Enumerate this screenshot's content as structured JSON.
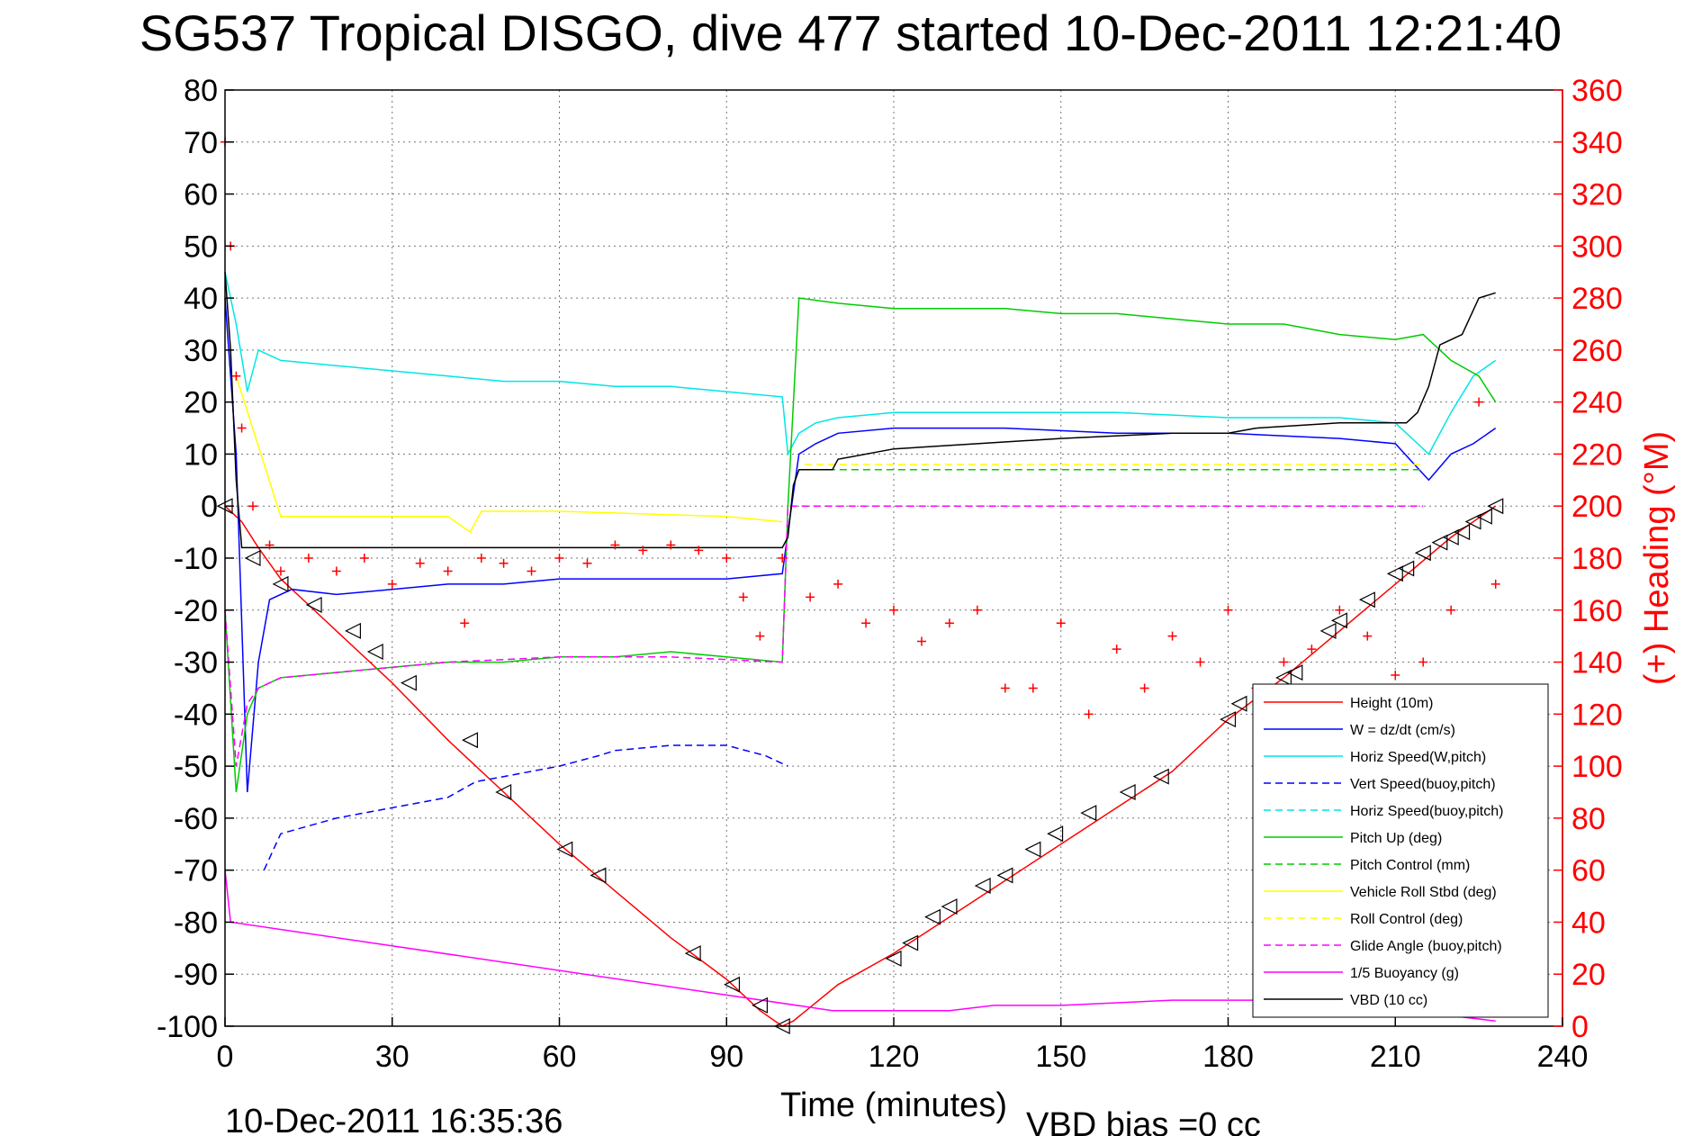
{
  "chart_data": {
    "type": "line",
    "title": "SG537 Tropical DISGO, dive 477 started 10-Dec-2011 12:21:40",
    "xlabel": "Time (minutes)",
    "ylabel_right": "(+) Heading (°M)",
    "xlim": [
      0,
      240
    ],
    "ylim": [
      -100,
      80
    ],
    "ylim_right": [
      0,
      360
    ],
    "x_ticks": [
      0,
      30,
      60,
      90,
      120,
      150,
      180,
      210,
      240
    ],
    "y_ticks": [
      80,
      70,
      60,
      50,
      40,
      30,
      20,
      10,
      0,
      -10,
      -20,
      -30,
      -40,
      -50,
      -60,
      -70,
      -80,
      -90,
      -100
    ],
    "y_ticks_right": [
      360,
      340,
      320,
      300,
      280,
      260,
      240,
      220,
      200,
      180,
      160,
      140,
      120,
      100,
      80,
      60,
      40,
      20,
      0
    ],
    "grid": true,
    "legend_position": "lower-right",
    "footer_left": "10-Dec-2011 16:35:36",
    "footer_right": "VBD bias =0 cc",
    "series": [
      {
        "name": "Height (10m)",
        "color": "#ff0000",
        "style": "solid",
        "x": [
          0,
          3,
          6,
          10,
          15,
          20,
          30,
          40,
          50,
          60,
          70,
          80,
          90,
          96,
          100,
          102,
          110,
          120,
          130,
          140,
          150,
          160,
          170,
          180,
          190,
          200,
          210,
          220,
          228
        ],
        "y": [
          0,
          -3,
          -8,
          -14,
          -19,
          -24,
          -34,
          -45,
          -55,
          -65,
          -74,
          -83,
          -91,
          -97,
          -100,
          -99,
          -92,
          -86,
          -79,
          -72,
          -65,
          -58,
          -51,
          -41,
          -33,
          -24,
          -15,
          -6,
          0
        ]
      },
      {
        "name": "W = dz/dt (cm/s)",
        "color": "#0000ff",
        "style": "solid",
        "x": [
          0,
          2,
          4,
          6,
          8,
          12,
          20,
          30,
          40,
          50,
          60,
          70,
          80,
          90,
          100,
          101,
          103,
          106,
          110,
          120,
          140,
          160,
          180,
          200,
          210,
          216,
          220,
          224,
          228
        ],
        "y": [
          40,
          10,
          -55,
          -30,
          -18,
          -16,
          -17,
          -16,
          -15,
          -15,
          -14,
          -14,
          -14,
          -14,
          -13,
          -5,
          10,
          12,
          14,
          15,
          15,
          14,
          14,
          13,
          12,
          5,
          10,
          12,
          15
        ]
      },
      {
        "name": "Horiz Speed(W,pitch)",
        "color": "#00e6e6",
        "style": "solid",
        "x": [
          0,
          2,
          4,
          6,
          10,
          20,
          30,
          40,
          50,
          60,
          70,
          80,
          90,
          100,
          101,
          103,
          106,
          110,
          120,
          140,
          160,
          180,
          200,
          210,
          216,
          220,
          224,
          228
        ],
        "y": [
          45,
          35,
          22,
          30,
          28,
          27,
          26,
          25,
          24,
          24,
          23,
          23,
          22,
          21,
          10,
          14,
          16,
          17,
          18,
          18,
          18,
          17,
          17,
          16,
          10,
          18,
          25,
          28
        ]
      },
      {
        "name": "Vert Speed(buoy,pitch)",
        "color": "#0000ff",
        "style": "dashed",
        "x": [
          7,
          10,
          20,
          30,
          40,
          45,
          50,
          60,
          67,
          70,
          80,
          90,
          97,
          101
        ],
        "y": [
          -70,
          -63,
          -60,
          -58,
          -56,
          -53,
          -52,
          -50,
          -48,
          -47,
          -46,
          -46,
          -48,
          -50
        ]
      },
      {
        "name": "Horiz Speed(buoy,pitch)",
        "color": "#00e6e6",
        "style": "dashed",
        "x": [],
        "y": []
      },
      {
        "name": "Pitch Up (deg)",
        "color": "#00cc00",
        "style": "solid",
        "x": [
          0,
          2,
          4,
          6,
          10,
          20,
          30,
          40,
          50,
          60,
          70,
          80,
          90,
          100,
          101,
          103,
          110,
          120,
          130,
          140,
          150,
          160,
          170,
          180,
          190,
          200,
          210,
          215,
          220,
          225,
          228
        ],
        "y": [
          -20,
          -55,
          -40,
          -35,
          -33,
          -32,
          -31,
          -30,
          -30,
          -29,
          -29,
          -28,
          -29,
          -30,
          0,
          40,
          39,
          38,
          38,
          38,
          37,
          37,
          36,
          35,
          35,
          33,
          32,
          33,
          28,
          25,
          20
        ]
      },
      {
        "name": "Pitch Control (mm)",
        "color": "#00cc00",
        "style": "dashed",
        "x": [
          104,
          120,
          150,
          180,
          200,
          210,
          215
        ],
        "y": [
          7,
          7,
          7,
          7,
          7,
          7,
          7
        ]
      },
      {
        "name": "Vehicle Roll Stbd (deg)",
        "color": "#ffff00",
        "style": "solid",
        "x": [
          2,
          10,
          40,
          44,
          46,
          60,
          90,
          100
        ],
        "y": [
          25,
          -2,
          -2,
          -5,
          -1,
          -1,
          -2,
          -3
        ]
      },
      {
        "name": "Roll Control (deg)",
        "color": "#ffff00",
        "style": "dashed",
        "x": [
          104,
          130,
          160,
          190,
          215
        ],
        "y": [
          8,
          8,
          8,
          8,
          8
        ]
      },
      {
        "name": "Glide Angle (buoy,pitch)",
        "color": "#ff00ff",
        "style": "dashed",
        "x": [
          0,
          2,
          4,
          6,
          10,
          20,
          40,
          60,
          80,
          100,
          101,
          104,
          150,
          200,
          215
        ],
        "y": [
          -20,
          -50,
          -38,
          -35,
          -33,
          -32,
          -30,
          -29,
          -29,
          -30,
          0,
          0,
          0,
          0,
          0
        ]
      },
      {
        "name": "1/5 Buoyancy (g)",
        "color": "#ff00ff",
        "style": "solid",
        "x": [
          0,
          1,
          109,
          115,
          130,
          138,
          150,
          170,
          185,
          195,
          205,
          210,
          220,
          228
        ],
        "y": [
          -70,
          -80,
          -97,
          -97,
          -97,
          -96,
          -96,
          -95,
          -95,
          -96,
          -96,
          -97,
          -98,
          -99
        ]
      },
      {
        "name": "VBD (10 cc)",
        "color": "#000000",
        "style": "solid",
        "x": [
          0,
          1,
          2,
          3,
          100,
          101,
          102,
          103,
          109,
          110,
          120,
          135,
          150,
          170,
          180,
          185,
          200,
          212,
          214,
          216,
          218,
          222,
          225,
          228
        ],
        "y": [
          45,
          30,
          5,
          -8,
          -8,
          -6,
          4,
          7,
          7,
          9,
          11,
          12,
          13,
          14,
          14,
          15,
          16,
          16,
          18,
          23,
          31,
          33,
          40,
          41
        ]
      }
    ],
    "heading_series": {
      "name": "Heading (+)",
      "color": "#ff0000",
      "marker": "+",
      "axis": "right",
      "x": [
        0,
        1,
        2,
        3,
        5,
        8,
        10,
        15,
        20,
        25,
        30,
        35,
        40,
        43,
        46,
        50,
        55,
        60,
        65,
        70,
        75,
        80,
        85,
        90,
        93,
        96,
        100,
        105,
        110,
        115,
        120,
        125,
        130,
        135,
        140,
        145,
        150,
        155,
        160,
        165,
        170,
        175,
        180,
        185,
        190,
        195,
        200,
        205,
        210,
        215,
        220,
        225,
        228
      ],
      "y": [
        340,
        300,
        250,
        230,
        200,
        185,
        175,
        180,
        175,
        180,
        170,
        178,
        175,
        155,
        180,
        178,
        175,
        180,
        178,
        185,
        183,
        185,
        183,
        180,
        165,
        150,
        180,
        165,
        170,
        155,
        160,
        148,
        155,
        160,
        130,
        130,
        155,
        120,
        145,
        130,
        150,
        140,
        160,
        130,
        140,
        145,
        160,
        150,
        135,
        140,
        160,
        240,
        170
      ]
    },
    "depth_markers": {
      "name": "Depth triangles",
      "color": "#000000",
      "x": [
        0,
        5,
        10,
        16,
        23,
        27,
        33,
        44,
        50,
        61,
        67,
        84,
        91,
        96,
        100,
        120,
        123,
        127,
        130,
        136,
        140,
        145,
        149,
        155,
        162,
        168,
        180,
        182,
        190,
        192,
        198,
        200,
        205,
        210,
        212,
        215,
        218,
        220,
        222,
        224,
        226,
        228
      ],
      "y": [
        0,
        -10,
        -15,
        -19,
        -24,
        -28,
        -34,
        -45,
        -55,
        -66,
        -71,
        -86,
        -92,
        -96,
        -100,
        -87,
        -84,
        -79,
        -77,
        -73,
        -71,
        -66,
        -63,
        -59,
        -55,
        -52,
        -41,
        -38,
        -33,
        -32,
        -24,
        -22,
        -18,
        -13,
        -12,
        -9,
        -7,
        -6,
        -5,
        -3,
        -2,
        0
      ]
    }
  }
}
